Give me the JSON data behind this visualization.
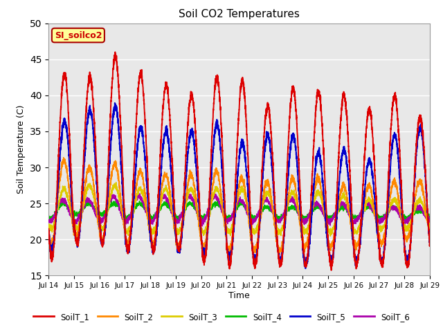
{
  "title": "Soil CO2 Temperatures",
  "xlabel": "Time",
  "ylabel": "Soil Temperature (C)",
  "ylim": [
    15,
    50
  ],
  "x_tick_labels": [
    "Jul 14",
    "Jul 15",
    "Jul 16",
    "Jul 17",
    "Jul 18",
    "Jul 19",
    "Jul 20",
    "Jul 21",
    "Jul 22",
    "Jul 23",
    "Jul 24",
    "Jul 25",
    "Jul 26",
    "Jul 27",
    "Jul 28",
    "Jul 29"
  ],
  "series_colors": [
    "#dd0000",
    "#ff8800",
    "#ddcc00",
    "#00bb00",
    "#0000cc",
    "#aa00aa"
  ],
  "series_names": [
    "SoilT_1",
    "SoilT_2",
    "SoilT_3",
    "SoilT_4",
    "SoilT_5",
    "SoilT_6"
  ],
  "annotation_text": "SI_soilco2",
  "annotation_bg": "#ffff99",
  "annotation_border": "#aa0000",
  "bg_color": "#e8e8e8",
  "fig_bg": "#ffffff",
  "grid_color": "#ffffff",
  "n_points": 4320,
  "days": 15
}
